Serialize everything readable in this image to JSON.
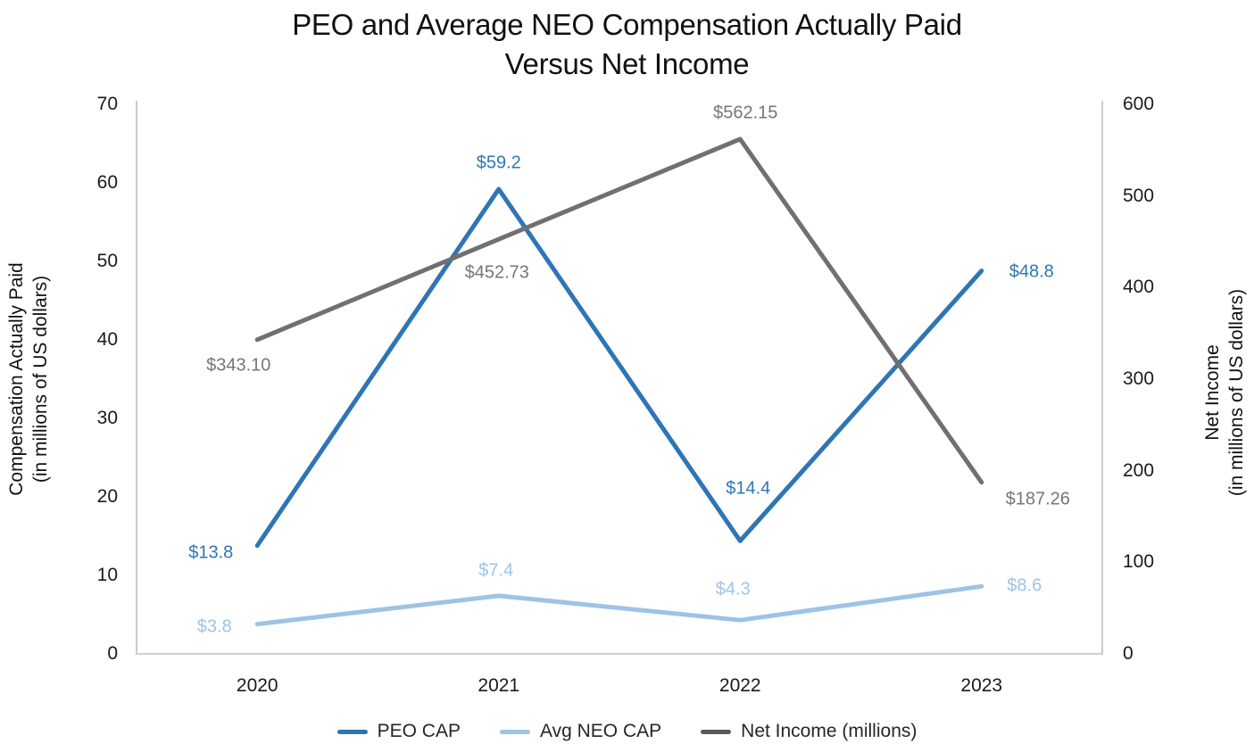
{
  "title": {
    "line1": "PEO and Average NEO Compensation Actually Paid",
    "line2": "Versus Net Income"
  },
  "axes": {
    "left": {
      "title_line1": "Compensation Actually Paid",
      "title_line2": "(in millions of US dollars)",
      "ticks": [
        0,
        10,
        20,
        30,
        40,
        50,
        60,
        70
      ],
      "range": [
        0,
        70
      ]
    },
    "right": {
      "title_line1": "Net Income",
      "title_line2": "(in millions of US dollars)",
      "ticks": [
        0,
        100,
        200,
        300,
        400,
        500,
        600
      ],
      "range": [
        0,
        600
      ]
    },
    "x": {
      "categories": [
        "2020",
        "2021",
        "2022",
        "2023"
      ]
    }
  },
  "chart_data": {
    "type": "line",
    "title": "PEO and Average NEO Compensation Actually Paid Versus Net Income",
    "categories": [
      "2020",
      "2021",
      "2022",
      "2023"
    ],
    "series": [
      {
        "name": "PEO CAP",
        "axis": "left",
        "values": [
          13.8,
          59.2,
          14.4,
          48.8
        ],
        "labels": [
          "$13.8",
          "$59.2",
          "$14.4",
          "$48.8"
        ],
        "color": "#2E75B6"
      },
      {
        "name": "Avg NEO CAP",
        "axis": "left",
        "values": [
          3.8,
          7.4,
          4.3,
          8.6
        ],
        "labels": [
          "$3.8",
          "$7.4",
          "$4.3",
          "$8.6"
        ],
        "color": "#9DC3E6"
      },
      {
        "name": "Net Income (millions)",
        "axis": "right",
        "values": [
          343.1,
          452.73,
          562.15,
          187.26
        ],
        "labels": [
          "$343.10",
          "$452.73",
          "$562.15",
          "$187.26"
        ],
        "color": "#707070",
        "label_color": "#767676"
      }
    ],
    "ylabel_left": "Compensation Actually Paid (in millions of US dollars)",
    "ylabel_right": "Net Income (in millions of US dollars)",
    "ylim_left": [
      0,
      70
    ],
    "ylim_right": [
      0,
      600
    ],
    "grid": false,
    "legend_position": "bottom",
    "axis_line_color": "#BFBFBF"
  },
  "legend": {
    "items": [
      {
        "label": "PEO CAP",
        "color": "#2E75B6"
      },
      {
        "label": "Avg NEO CAP",
        "color": "#9DC3E6"
      },
      {
        "label": "Net Income (millions)",
        "color": "#595959"
      }
    ]
  }
}
